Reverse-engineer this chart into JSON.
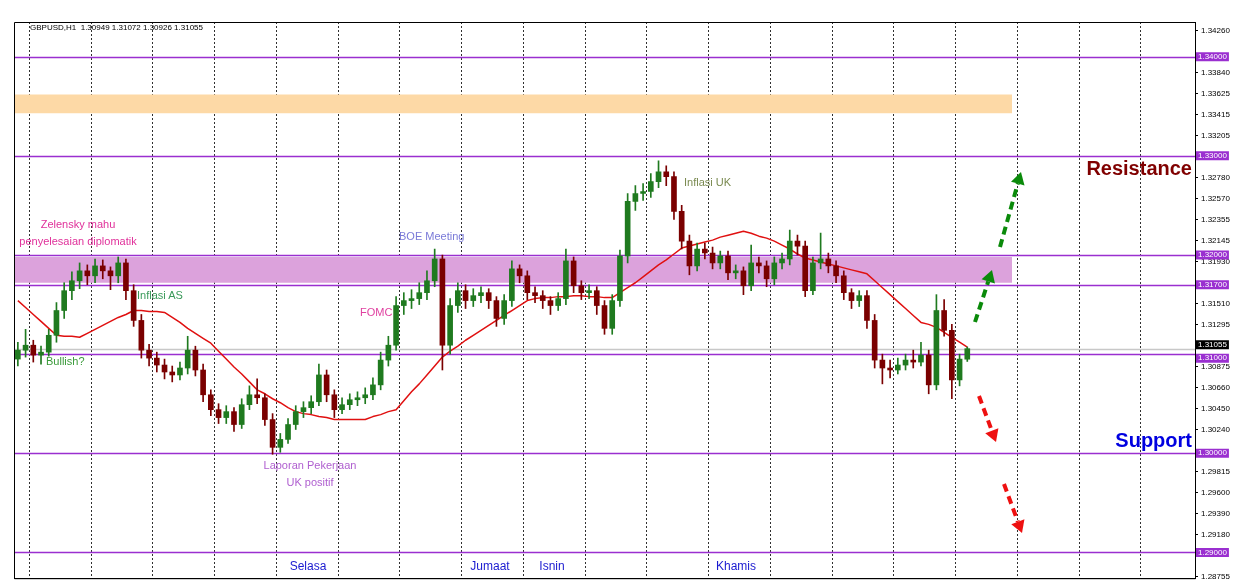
{
  "chart_data": {
    "type": "candlestick",
    "categories": [
      null,
      null,
      null,
      null,
      null,
      null,
      null,
      null,
      null,
      null,
      null,
      null,
      null,
      null,
      null,
      null,
      null,
      null,
      null,
      null,
      null,
      null,
      null,
      null,
      null,
      null,
      null,
      null,
      null,
      null,
      null,
      null,
      null,
      null,
      null,
      null,
      null,
      null,
      null,
      null,
      null,
      null,
      null,
      null,
      null,
      null,
      null,
      null,
      null,
      null,
      null,
      null,
      null,
      null,
      null,
      null,
      null,
      null,
      null,
      null,
      null,
      null,
      null,
      null,
      null,
      null,
      null,
      null,
      null,
      null,
      null,
      null,
      null,
      null,
      null,
      null,
      null,
      null,
      null,
      null,
      null,
      null,
      null,
      null,
      null,
      null,
      null,
      null,
      null,
      null,
      null,
      null,
      null,
      null,
      null,
      null,
      null,
      null,
      null,
      null,
      null,
      null,
      null,
      null,
      null,
      null,
      null,
      null,
      null,
      null,
      null,
      null,
      null,
      null,
      null,
      null,
      null,
      null,
      null,
      null,
      null,
      null,
      null,
      null,
      null,
      null,
      null,
      null,
      null,
      null,
      null,
      null,
      null,
      null,
      null,
      null,
      null,
      null,
      null,
      null,
      null,
      null,
      null,
      null,
      null,
      null,
      null,
      null,
      null,
      null,
      null,
      null,
      null
    ],
    "ohlc": [
      [
        1.3095,
        1.3112,
        1.3088,
        1.3104
      ],
      [
        1.3104,
        1.3125,
        1.3097,
        1.3109
      ],
      [
        1.3109,
        1.3114,
        1.3092,
        1.3099
      ],
      [
        1.3099,
        1.3108,
        1.309,
        1.3102
      ],
      [
        1.3102,
        1.3125,
        1.3098,
        1.3119
      ],
      [
        1.3119,
        1.3152,
        1.3112,
        1.3144
      ],
      [
        1.3144,
        1.3172,
        1.3136,
        1.3164
      ],
      [
        1.3164,
        1.3183,
        1.3155,
        1.3174
      ],
      [
        1.3174,
        1.3192,
        1.3166,
        1.3184
      ],
      [
        1.3184,
        1.319,
        1.317,
        1.3179
      ],
      [
        1.3179,
        1.3196,
        1.3172,
        1.3189
      ],
      [
        1.3189,
        1.3195,
        1.3176,
        1.3184
      ],
      [
        1.3184,
        1.3188,
        1.3165,
        1.3179
      ],
      [
        1.3179,
        1.3198,
        1.3172,
        1.3192
      ],
      [
        1.3192,
        1.3196,
        1.3155,
        1.3164
      ],
      [
        1.3164,
        1.317,
        1.3128,
        1.3134
      ],
      [
        1.3134,
        1.314,
        1.3096,
        1.3104
      ],
      [
        1.3104,
        1.311,
        1.3088,
        1.3096
      ],
      [
        1.3096,
        1.3102,
        1.3082,
        1.3089
      ],
      [
        1.3089,
        1.3095,
        1.3075,
        1.3082
      ],
      [
        1.3082,
        1.3088,
        1.3072,
        1.3079
      ],
      [
        1.3079,
        1.3092,
        1.3074,
        1.3086
      ],
      [
        1.3086,
        1.3118,
        1.308,
        1.3104
      ],
      [
        1.3104,
        1.3108,
        1.3078,
        1.3084
      ],
      [
        1.3084,
        1.309,
        1.3052,
        1.3059
      ],
      [
        1.3059,
        1.3064,
        1.3038,
        1.3044
      ],
      [
        1.3044,
        1.305,
        1.303,
        1.3036
      ],
      [
        1.3036,
        1.3048,
        1.303,
        1.3042
      ],
      [
        1.3042,
        1.3046,
        1.3022,
        1.3029
      ],
      [
        1.3029,
        1.3055,
        1.3025,
        1.3049
      ],
      [
        1.3049,
        1.3068,
        1.3044,
        1.3059
      ],
      [
        1.3059,
        1.3075,
        1.305,
        1.3056
      ],
      [
        1.3056,
        1.306,
        1.3028,
        1.3034
      ],
      [
        1.3034,
        1.304,
        1.2999,
        1.3006
      ],
      [
        1.3006,
        1.302,
        1.3001,
        1.3014
      ],
      [
        1.3014,
        1.3035,
        1.301,
        1.3029
      ],
      [
        1.3029,
        1.3048,
        1.3024,
        1.3042
      ],
      [
        1.3042,
        1.3052,
        1.3036,
        1.3046
      ],
      [
        1.3046,
        1.3058,
        1.304,
        1.3052
      ],
      [
        1.3052,
        1.309,
        1.3048,
        1.3079
      ],
      [
        1.3079,
        1.3084,
        1.3052,
        1.3059
      ],
      [
        1.3059,
        1.3064,
        1.3036,
        1.3044
      ],
      [
        1.3044,
        1.3056,
        1.304,
        1.3049
      ],
      [
        1.3049,
        1.306,
        1.3044,
        1.3054
      ],
      [
        1.3054,
        1.3062,
        1.3048,
        1.3056
      ],
      [
        1.3056,
        1.3066,
        1.305,
        1.3059
      ],
      [
        1.3059,
        1.3076,
        1.3054,
        1.3069
      ],
      [
        1.3069,
        1.3102,
        1.3064,
        1.3094
      ],
      [
        1.3094,
        1.3118,
        1.3088,
        1.3109
      ],
      [
        1.3109,
        1.3158,
        1.3104,
        1.3149
      ],
      [
        1.3149,
        1.3162,
        1.314,
        1.3154
      ],
      [
        1.3154,
        1.3165,
        1.3146,
        1.3156
      ],
      [
        1.3156,
        1.3172,
        1.315,
        1.3162
      ],
      [
        1.3162,
        1.3184,
        1.3155,
        1.3174
      ],
      [
        1.3174,
        1.3206,
        1.3168,
        1.3196
      ],
      [
        1.3196,
        1.32,
        1.3084,
        1.3109
      ],
      [
        1.3109,
        1.3156,
        1.31,
        1.3149
      ],
      [
        1.3149,
        1.3172,
        1.3142,
        1.3164
      ],
      [
        1.3164,
        1.317,
        1.3146,
        1.3154
      ],
      [
        1.3154,
        1.3166,
        1.3148,
        1.3159
      ],
      [
        1.3159,
        1.3168,
        1.3152,
        1.3162
      ],
      [
        1.3162,
        1.3166,
        1.3146,
        1.3154
      ],
      [
        1.3154,
        1.3158,
        1.3128,
        1.3136
      ],
      [
        1.3136,
        1.316,
        1.313,
        1.3154
      ],
      [
        1.3154,
        1.3194,
        1.3148,
        1.3186
      ],
      [
        1.3186,
        1.319,
        1.3172,
        1.3179
      ],
      [
        1.3179,
        1.3184,
        1.3155,
        1.3162
      ],
      [
        1.3162,
        1.3168,
        1.3152,
        1.3159
      ],
      [
        1.3159,
        1.3164,
        1.3146,
        1.3154
      ],
      [
        1.3154,
        1.3158,
        1.314,
        1.3149
      ],
      [
        1.3149,
        1.3162,
        1.3144,
        1.3156
      ],
      [
        1.3156,
        1.3206,
        1.315,
        1.3194
      ],
      [
        1.3194,
        1.3198,
        1.3162,
        1.3169
      ],
      [
        1.3169,
        1.3174,
        1.3155,
        1.3162
      ],
      [
        1.3162,
        1.317,
        1.3156,
        1.3164
      ],
      [
        1.3164,
        1.3168,
        1.314,
        1.3149
      ],
      [
        1.3149,
        1.3154,
        1.312,
        1.3126
      ],
      [
        1.3126,
        1.316,
        1.312,
        1.3154
      ],
      [
        1.3154,
        1.3205,
        1.3148,
        1.3199
      ],
      [
        1.3199,
        1.3262,
        1.3192,
        1.3254
      ],
      [
        1.3254,
        1.327,
        1.3245,
        1.3262
      ],
      [
        1.3262,
        1.3272,
        1.3255,
        1.3264
      ],
      [
        1.3264,
        1.3282,
        1.3258,
        1.3274
      ],
      [
        1.3274,
        1.3295,
        1.3268,
        1.3284
      ],
      [
        1.3284,
        1.329,
        1.327,
        1.3279
      ],
      [
        1.3279,
        1.3284,
        1.3236,
        1.3244
      ],
      [
        1.3244,
        1.325,
        1.3206,
        1.3214
      ],
      [
        1.3214,
        1.322,
        1.318,
        1.3189
      ],
      [
        1.3189,
        1.3212,
        1.3184,
        1.3206
      ],
      [
        1.3206,
        1.3212,
        1.3196,
        1.3202
      ],
      [
        1.3202,
        1.3208,
        1.3186,
        1.3192
      ],
      [
        1.3192,
        1.3204,
        1.3186,
        1.3199
      ],
      [
        1.3199,
        1.3204,
        1.3175,
        1.3182
      ],
      [
        1.3182,
        1.319,
        1.3176,
        1.3184
      ],
      [
        1.3184,
        1.3188,
        1.316,
        1.3169
      ],
      [
        1.3169,
        1.321,
        1.3164,
        1.3192
      ],
      [
        1.3192,
        1.3198,
        1.3182,
        1.3189
      ],
      [
        1.3189,
        1.3194,
        1.3168,
        1.3176
      ],
      [
        1.3176,
        1.3198,
        1.317,
        1.3192
      ],
      [
        1.3192,
        1.3202,
        1.3186,
        1.3196
      ],
      [
        1.3196,
        1.3225,
        1.319,
        1.3214
      ],
      [
        1.3214,
        1.322,
        1.32,
        1.3209
      ],
      [
        1.3209,
        1.3214,
        1.3158,
        1.3164
      ],
      [
        1.3164,
        1.3198,
        1.316,
        1.3192
      ],
      [
        1.3192,
        1.3222,
        1.3186,
        1.3196
      ],
      [
        1.3196,
        1.3202,
        1.3182,
        1.3189
      ],
      [
        1.3189,
        1.3194,
        1.3172,
        1.3179
      ],
      [
        1.3179,
        1.3184,
        1.3155,
        1.3162
      ],
      [
        1.3162,
        1.3166,
        1.3146,
        1.3154
      ],
      [
        1.3154,
        1.3164,
        1.3148,
        1.3159
      ],
      [
        1.3159,
        1.3164,
        1.3126,
        1.3134
      ],
      [
        1.3134,
        1.314,
        1.3086,
        1.3094
      ],
      [
        1.3094,
        1.31,
        1.307,
        1.3086
      ],
      [
        1.3086,
        1.3094,
        1.3076,
        1.3084
      ],
      [
        1.3084,
        1.3096,
        1.308,
        1.3089
      ],
      [
        1.3089,
        1.31,
        1.3084,
        1.3094
      ],
      [
        1.3094,
        1.3104,
        1.3086,
        1.3092
      ],
      [
        1.3092,
        1.3112,
        1.3088,
        1.3099
      ],
      [
        1.3099,
        1.3104,
        1.306,
        1.3069
      ],
      [
        1.3069,
        1.316,
        1.3064,
        1.3144
      ],
      [
        1.3144,
        1.3155,
        1.3118,
        1.3124
      ],
      [
        1.3124,
        1.313,
        1.3055,
        1.3074
      ],
      [
        1.3074,
        1.31,
        1.3068,
        1.3095
      ],
      [
        1.30949,
        1.31072,
        1.30926,
        1.31055
      ],
      null,
      null,
      null,
      null,
      null,
      null,
      null,
      null,
      null,
      null,
      null,
      null,
      null,
      null,
      null,
      null,
      null,
      null,
      null,
      null,
      null,
      null,
      null,
      null,
      null,
      null,
      null,
      null,
      null
    ],
    "series": [
      {
        "type": "line",
        "color": "#e01010",
        "values": [
          1.3154,
          1.3147,
          1.314,
          1.3133,
          1.3126,
          1.3119,
          1.3118,
          1.3118,
          1.3117,
          1.3121,
          1.3125,
          1.3129,
          1.3133,
          1.3137,
          1.314,
          1.3144,
          1.3144,
          1.3143,
          1.3143,
          1.3142,
          1.3137,
          1.3132,
          1.3126,
          1.3121,
          1.3116,
          1.3111,
          1.3103,
          1.3095,
          1.3087,
          1.308,
          1.3072,
          1.3064,
          1.306,
          1.3055,
          1.3051,
          1.3046,
          1.3042,
          1.304,
          1.3039,
          1.3037,
          1.3036,
          1.3034,
          1.3034,
          1.3034,
          1.3034,
          1.3034,
          1.3037,
          1.3039,
          1.3042,
          1.3044,
          1.3053,
          1.3062,
          1.307,
          1.3079,
          1.3088,
          1.3097,
          1.3103,
          1.3108,
          1.3114,
          1.3119,
          1.3124,
          1.3129,
          1.3134,
          1.3139,
          1.3144,
          1.3149,
          1.3154,
          1.3156,
          1.3157,
          1.3157,
          1.3158,
          1.3158,
          1.3159,
          1.3159,
          1.3158,
          1.3158,
          1.3157,
          1.3157,
          1.3162,
          1.3167,
          1.3172,
          1.3178,
          1.3184,
          1.319,
          1.3195,
          1.3201,
          1.3207,
          1.3209,
          1.3211,
          1.3213,
          1.3215,
          1.3218,
          1.322,
          1.3222,
          1.3224,
          1.3222,
          1.3219,
          1.3217,
          1.3214,
          1.321,
          1.3206,
          1.3201,
          1.3197,
          1.3195,
          1.3193,
          1.3191,
          1.3189,
          1.3187,
          1.3185,
          1.3183,
          1.3181,
          1.3174,
          1.3167,
          1.316,
          1.3153,
          1.3146,
          1.3139,
          1.3132,
          1.313,
          1.3127,
          1.3122,
          1.3117,
          1.3112,
          1.3107,
          null,
          null,
          null,
          null,
          null,
          null,
          null,
          null,
          null,
          null,
          null,
          null,
          null,
          null,
          null,
          null,
          null,
          null,
          null,
          null,
          null,
          null,
          null,
          null,
          null,
          null,
          null,
          null,
          null
        ]
      }
    ],
    "ylim": [
      1.2874,
      1.3435
    ],
    "yticks": [
      {
        "value": 1.3426,
        "label": "1.34260"
      },
      {
        "value": 1.3384,
        "label": "1.33840"
      },
      {
        "value": 1.33625,
        "label": "1.33625"
      },
      {
        "value": 1.33415,
        "label": "1.33415"
      },
      {
        "value": 1.33205,
        "label": "1.33205"
      },
      {
        "value": 1.3278,
        "label": "1.32780"
      },
      {
        "value": 1.3257,
        "label": "1.32570"
      },
      {
        "value": 1.32355,
        "label": "1.32355"
      },
      {
        "value": 1.32145,
        "label": "1.32145"
      },
      {
        "value": 1.3193,
        "label": "1.31930"
      },
      {
        "value": 1.3151,
        "label": "1.31510"
      },
      {
        "value": 1.31295,
        "label": "1.31295"
      },
      {
        "value": 1.30875,
        "label": "1.30875"
      },
      {
        "value": 1.3066,
        "label": "1.30660"
      },
      {
        "value": 1.3045,
        "label": "1.30450"
      },
      {
        "value": 1.3024,
        "label": "1.30240"
      },
      {
        "value": 1.29815,
        "label": "1.29815"
      },
      {
        "value": 1.296,
        "label": "1.29600"
      },
      {
        "value": 1.2939,
        "label": "1.29390"
      },
      {
        "value": 1.2918,
        "label": "1.29180"
      },
      {
        "value": 1.28755,
        "label": "1.28755"
      }
    ],
    "ref_lines": [
      {
        "axis": "y",
        "value": 1.34,
        "label": "1.34000",
        "color": "#9a2fd0"
      },
      {
        "axis": "y",
        "value": 1.33,
        "label": "1.33000",
        "color": "#9a2fd0"
      },
      {
        "axis": "y",
        "value": 1.32,
        "label": "1.32000",
        "color": "#9a2fd0"
      },
      {
        "axis": "y",
        "value": 1.317,
        "label": "1.31700",
        "color": "#9a2fd0"
      },
      {
        "axis": "y",
        "value": 1.31055,
        "label": "1.31055",
        "color": "#c8c8c8"
      },
      {
        "axis": "y",
        "value": 1.31,
        "label": "1.31000",
        "color": "#9a2fd0"
      },
      {
        "axis": "y",
        "value": 1.3,
        "label": "1.30000",
        "color": "#9a2fd0"
      },
      {
        "axis": "y",
        "value": 1.29,
        "label": "1.29000",
        "color": "#9a2fd0"
      }
    ],
    "bands": [
      {
        "axis": "y",
        "from": 1.3343,
        "to": 1.3362,
        "color": "#fdd9a6"
      },
      {
        "axis": "y",
        "from": 1.3172,
        "to": 1.3198,
        "color": "#dca2dc"
      }
    ],
    "annotations": [
      "GBPUSD,H1  1.30949 1.31072 1.30926 1.31055",
      "Zelensky mahu\npenyelesaian diplomatik",
      "Inflasi AS",
      "Bullish?",
      "FOMC",
      "BOE Meeting",
      "Inflasi UK",
      "Laporan Pekerjaan\nUK positif",
      "Selasa",
      "Jumaat",
      "Isnin",
      "Khamis",
      "Resistance",
      "Support"
    ],
    "grid": "x",
    "tick_labels": "y"
  }
}
